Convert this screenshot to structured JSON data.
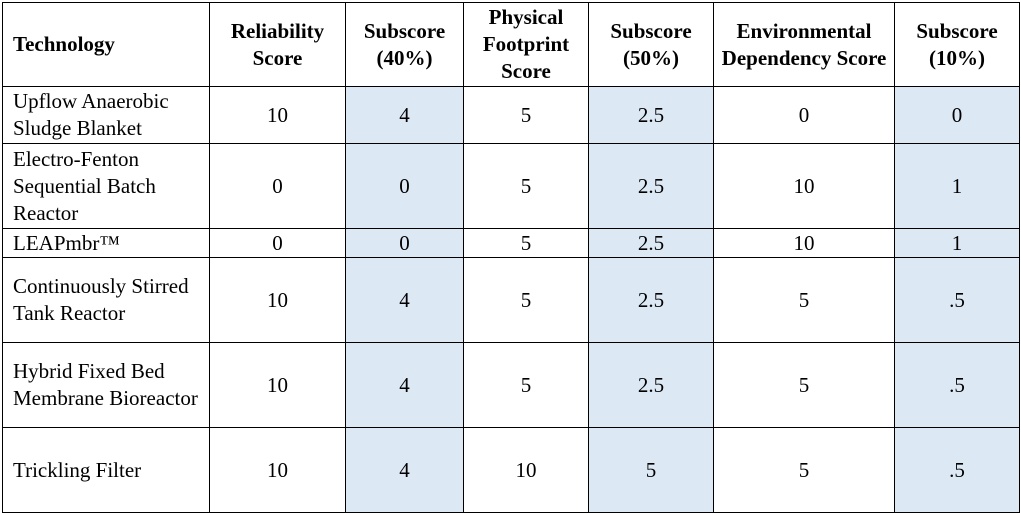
{
  "table": {
    "headers": [
      "Technology",
      "Reliability Score",
      "Subscore (40%)",
      "Physical Footprint Score",
      "Subscore (50%)",
      "Environmental Dependency Score",
      "Subscore (10%)"
    ],
    "rows": [
      [
        "Upflow Anaerobic Sludge Blanket",
        "10",
        "4",
        "5",
        "2.5",
        "0",
        "0"
      ],
      [
        "Electro-Fenton Sequential Batch Reactor",
        "0",
        "0",
        "5",
        "2.5",
        "10",
        "1"
      ],
      [
        "LEAPmbr™",
        "0",
        "0",
        "5",
        "2.5",
        "10",
        "1"
      ],
      [
        "Continuously Stirred Tank Reactor",
        "10",
        "4",
        "5",
        "2.5",
        "5",
        ".5"
      ],
      [
        "Hybrid Fixed Bed Membrane Bioreactor",
        "10",
        "4",
        "5",
        "2.5",
        "5",
        ".5"
      ],
      [
        "Trickling Filter",
        "10",
        "4",
        "10",
        "5",
        "5",
        ".5"
      ]
    ],
    "shade_color": "#dde8f5"
  }
}
